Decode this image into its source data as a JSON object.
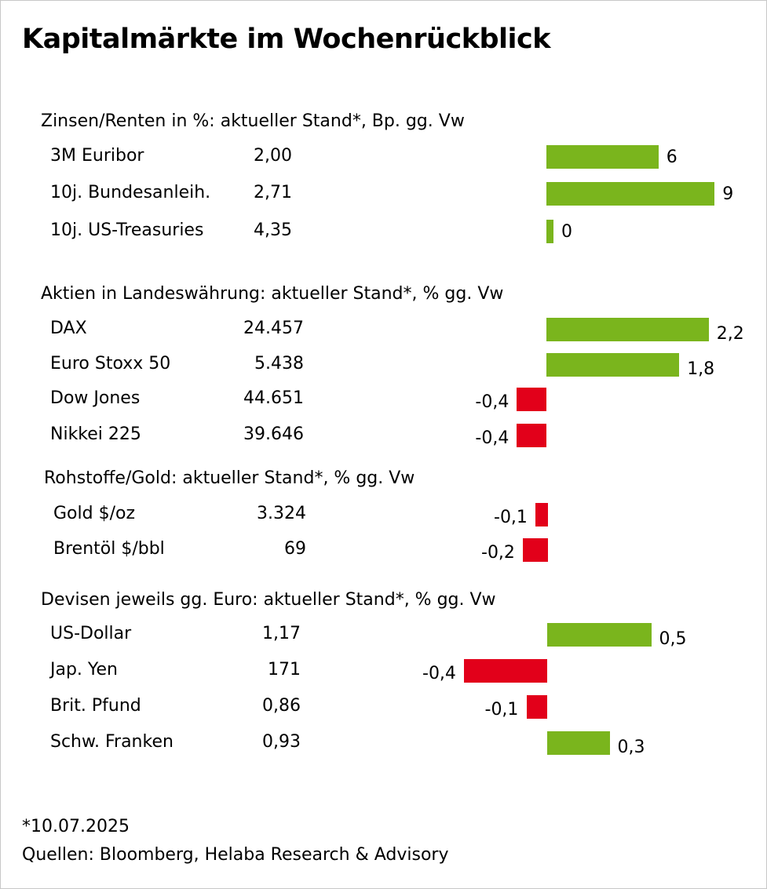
{
  "title": "Kapitalmärkte im Wochenrückblick",
  "footnote": "*10.07.2025",
  "source": "Quellen: Bloomberg, Helaba Research & Advisory",
  "colors": {
    "positive": "#7ab51d",
    "negative": "#e2001a"
  },
  "chart_data": [
    {
      "type": "bar",
      "title": "Zinsen/Renten in %: aktueller Stand*, Bp. gg. Vw",
      "categories": [
        "3M Euribor",
        "10j. Bundesanleih.",
        "10j. US-Treasuries"
      ],
      "levels": [
        "2,00",
        "2,71",
        "4,35"
      ],
      "values": [
        6,
        9,
        0
      ],
      "value_labels": [
        "6",
        "9",
        "0"
      ]
    },
    {
      "type": "bar",
      "title": "Aktien in Landeswährung: aktueller Stand*, % gg. Vw",
      "categories": [
        "DAX",
        "Euro Stoxx 50",
        "Dow Jones",
        "Nikkei 225"
      ],
      "levels": [
        "24.457",
        "5.438",
        "44.651",
        "39.646"
      ],
      "values": [
        2.2,
        1.8,
        -0.4,
        -0.4
      ],
      "value_labels": [
        "2,2",
        "1,8",
        "-0,4",
        "-0,4"
      ]
    },
    {
      "type": "bar",
      "title": "Rohstoffe/Gold: aktueller Stand*, % gg. Vw",
      "categories": [
        "Gold $/oz",
        "Brentöl $/bbl"
      ],
      "levels": [
        "3.324",
        "69"
      ],
      "values": [
        -0.1,
        -0.2
      ],
      "value_labels": [
        "-0,1",
        "-0,2"
      ]
    },
    {
      "type": "bar",
      "title": "Devisen jeweils gg. Euro: aktueller Stand*, % gg. Vw",
      "categories": [
        "US-Dollar",
        "Jap. Yen",
        "Brit. Pfund",
        "Schw. Franken"
      ],
      "levels": [
        "1,17",
        "171",
        "0,86",
        "0,93"
      ],
      "values": [
        0.5,
        -0.4,
        -0.1,
        0.3
      ],
      "value_labels": [
        "0,5",
        "-0,4",
        "-0,1",
        "0,3"
      ]
    }
  ]
}
